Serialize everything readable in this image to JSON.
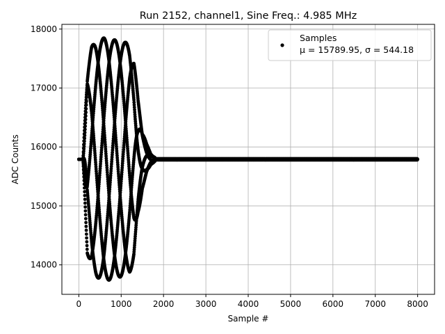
{
  "chart_data": {
    "type": "scatter",
    "title": "Run 2152, channel1, Sine Freq.: 4.985 MHz",
    "xlabel": "Sample #",
    "ylabel": "ADC Counts",
    "xlim": [
      -400,
      8400
    ],
    "ylim": [
      13500,
      18080
    ],
    "xticks": [
      0,
      1000,
      2000,
      3000,
      4000,
      5000,
      6000,
      7000,
      8000
    ],
    "yticks": [
      14000,
      15000,
      16000,
      17000,
      18000
    ],
    "grid": true,
    "legend": {
      "placement": "top-right",
      "entries": [
        {
          "label": "Samples",
          "stats": "μ = 15789.95, σ = 544.18"
        }
      ]
    },
    "series": [
      {
        "name": "Samples",
        "marker": "point",
        "color": "#000000",
        "description_of_shape": "",
        "baseline": 15789.95,
        "envelope_points": [
          [
            0,
            15789.95
          ],
          [
            100,
            15789.95
          ],
          [
            200,
            17400
          ],
          [
            300,
            17700
          ],
          [
            400,
            17800
          ],
          [
            600,
            17850
          ],
          [
            800,
            17820
          ],
          [
            1000,
            17800
          ],
          [
            1200,
            17750
          ],
          [
            1300,
            17500
          ],
          [
            1400,
            16800
          ],
          [
            1500,
            16300
          ],
          [
            1600,
            16050
          ],
          [
            1700,
            15880
          ],
          [
            1800,
            15820
          ],
          [
            2000,
            15800
          ],
          [
            8000,
            15800
          ]
        ],
        "lower_envelope_points": [
          [
            0,
            15789.95
          ],
          [
            100,
            15789.95
          ],
          [
            200,
            14200
          ],
          [
            300,
            13900
          ],
          [
            400,
            13800
          ],
          [
            600,
            13720
          ],
          [
            800,
            13760
          ],
          [
            1000,
            13800
          ],
          [
            1200,
            13850
          ],
          [
            1300,
            14100
          ],
          [
            1400,
            14800
          ],
          [
            1500,
            15300
          ],
          [
            1600,
            15550
          ],
          [
            1700,
            15700
          ],
          [
            1800,
            15760
          ],
          [
            2000,
            15775
          ],
          [
            8000,
            15780
          ]
        ]
      }
    ]
  }
}
